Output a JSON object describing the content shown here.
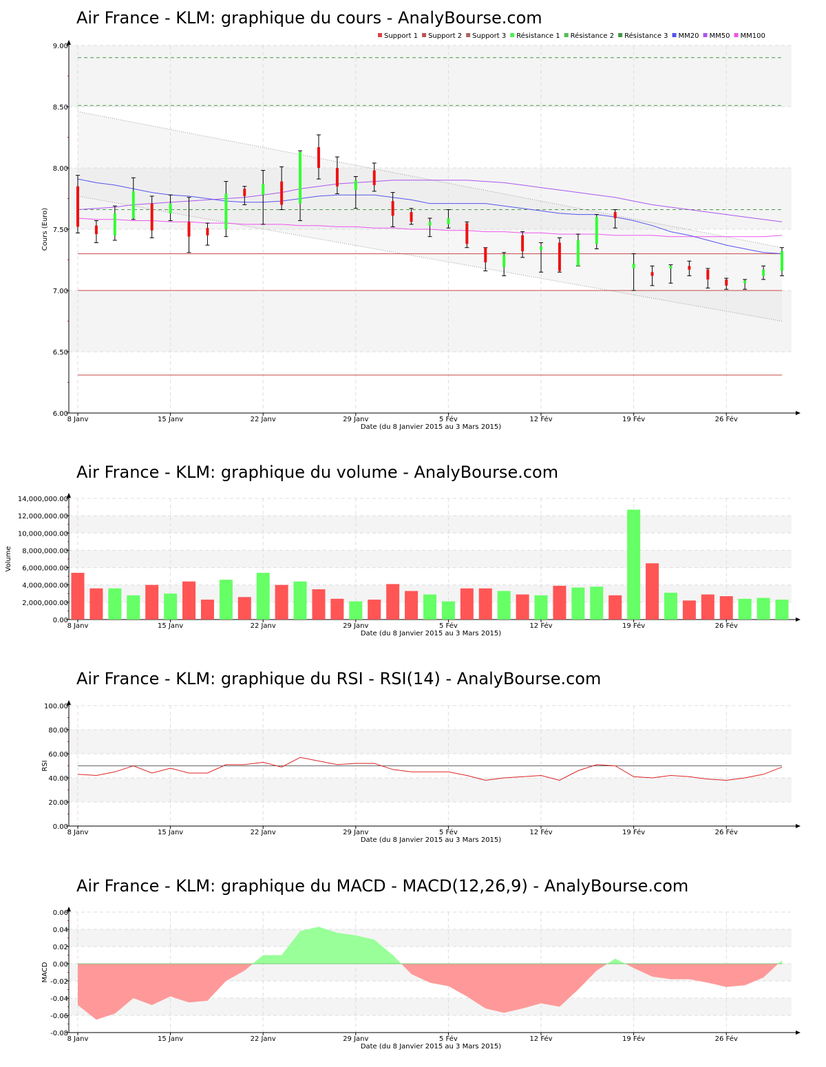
{
  "colors": {
    "up": "#33ff33",
    "down": "#ee1111",
    "vol_up": "#66ff66",
    "vol_down": "#ff5555",
    "macd_pos": "#99ff99",
    "macd_neg": "#ff9999",
    "support": "#cc4444",
    "resistance": "#449944",
    "mm20": "#5555ee",
    "mm50": "#aa55ee",
    "mm100": "#ee55ee",
    "rsi": "#dd2222"
  },
  "chart_data": [
    {
      "id": "price",
      "type": "candlestick",
      "title": "Air France - KLM: graphique du cours - AnalyBourse.com",
      "xlabel": "Date (du 8 Janvier 2015 au 3 Mars 2015)",
      "ylabel": "Cours (Euro)",
      "ylim": [
        6.0,
        9.0
      ],
      "yticks": [
        "6.00",
        "6.50",
        "7.00",
        "7.50",
        "8.00",
        "8.50",
        "9.00"
      ],
      "xticks": [
        {
          "label": "8 Janv",
          "i": 0
        },
        {
          "label": "15 Janv",
          "i": 5
        },
        {
          "label": "22 Janv",
          "i": 10
        },
        {
          "label": "29 Janv",
          "i": 15
        },
        {
          "label": "5 Fév",
          "i": 20
        },
        {
          "label": "12 Fév",
          "i": 25
        },
        {
          "label": "19 Fév",
          "i": 30
        },
        {
          "label": "26 Fév",
          "i": 35
        }
      ],
      "legend": [
        {
          "name": "Support 1",
          "color": "#dd4444"
        },
        {
          "name": "Support 2",
          "color": "#bb5555"
        },
        {
          "name": "Support 3",
          "color": "#aa6666"
        },
        {
          "name": "Résistance 1",
          "color": "#55ee55"
        },
        {
          "name": "Résistance 2",
          "color": "#55bb55"
        },
        {
          "name": "Résistance 3",
          "color": "#449944"
        },
        {
          "name": "MM20",
          "color": "#5555ee"
        },
        {
          "name": "MM50",
          "color": "#aa55ee"
        },
        {
          "name": "MM100",
          "color": "#ee55ee"
        }
      ],
      "supports": [
        7.3,
        7.0,
        6.31
      ],
      "resistances": [
        7.66,
        8.51,
        8.9
      ],
      "trend_channel": {
        "upper": [
          8.46,
          7.35
        ],
        "lower": [
          7.77,
          6.75
        ]
      },
      "candles": [
        {
          "o": 7.85,
          "h": 7.94,
          "l": 7.47,
          "c": 7.52
        },
        {
          "o": 7.53,
          "h": 7.57,
          "l": 7.39,
          "c": 7.46
        },
        {
          "o": 7.45,
          "h": 7.69,
          "l": 7.41,
          "c": 7.63
        },
        {
          "o": 7.59,
          "h": 7.92,
          "l": 7.58,
          "c": 7.81
        },
        {
          "o": 7.71,
          "h": 7.77,
          "l": 7.43,
          "c": 7.49
        },
        {
          "o": 7.63,
          "h": 7.78,
          "l": 7.57,
          "c": 7.71
        },
        {
          "o": 7.56,
          "h": 7.76,
          "l": 7.31,
          "c": 7.44
        },
        {
          "o": 7.51,
          "h": 7.55,
          "l": 7.37,
          "c": 7.45
        },
        {
          "o": 7.5,
          "h": 7.89,
          "l": 7.44,
          "c": 7.79
        },
        {
          "o": 7.83,
          "h": 7.85,
          "l": 7.7,
          "c": 7.77
        },
        {
          "o": 7.78,
          "h": 7.98,
          "l": 7.54,
          "c": 7.87
        },
        {
          "o": 7.89,
          "h": 8.01,
          "l": 7.66,
          "c": 7.7
        },
        {
          "o": 7.71,
          "h": 8.14,
          "l": 7.57,
          "c": 8.13
        },
        {
          "o": 8.17,
          "h": 8.27,
          "l": 7.91,
          "c": 8.0
        },
        {
          "o": 8.0,
          "h": 8.09,
          "l": 7.79,
          "c": 7.85
        },
        {
          "o": 7.82,
          "h": 7.93,
          "l": 7.67,
          "c": 7.9
        },
        {
          "o": 7.98,
          "h": 8.04,
          "l": 7.81,
          "c": 7.86
        },
        {
          "o": 7.73,
          "h": 7.8,
          "l": 7.52,
          "c": 7.61
        },
        {
          "o": 7.64,
          "h": 7.67,
          "l": 7.54,
          "c": 7.56
        },
        {
          "o": 7.53,
          "h": 7.59,
          "l": 7.44,
          "c": 7.56
        },
        {
          "o": 7.54,
          "h": 7.66,
          "l": 7.51,
          "c": 7.59
        },
        {
          "o": 7.55,
          "h": 7.56,
          "l": 7.35,
          "c": 7.38
        },
        {
          "o": 7.35,
          "h": 7.35,
          "l": 7.16,
          "c": 7.23
        },
        {
          "o": 7.19,
          "h": 7.31,
          "l": 7.12,
          "c": 7.29
        },
        {
          "o": 7.45,
          "h": 7.48,
          "l": 7.27,
          "c": 7.32
        },
        {
          "o": 7.33,
          "h": 7.39,
          "l": 7.15,
          "c": 7.36
        },
        {
          "o": 7.39,
          "h": 7.43,
          "l": 7.15,
          "c": 7.16
        },
        {
          "o": 7.2,
          "h": 7.46,
          "l": 7.2,
          "c": 7.41
        },
        {
          "o": 7.38,
          "h": 7.62,
          "l": 7.34,
          "c": 7.6
        },
        {
          "o": 7.64,
          "h": 7.66,
          "l": 7.51,
          "c": 7.59
        },
        {
          "o": 7.18,
          "h": 7.3,
          "l": 7.0,
          "c": 7.22
        },
        {
          "o": 7.15,
          "h": 7.2,
          "l": 7.04,
          "c": 7.12
        },
        {
          "o": 7.18,
          "h": 7.21,
          "l": 7.06,
          "c": 7.2
        },
        {
          "o": 7.2,
          "h": 7.24,
          "l": 7.12,
          "c": 7.17
        },
        {
          "o": 7.17,
          "h": 7.18,
          "l": 7.02,
          "c": 7.09
        },
        {
          "o": 7.09,
          "h": 7.1,
          "l": 7.01,
          "c": 7.04
        },
        {
          "o": 7.06,
          "h": 7.09,
          "l": 7.01,
          "c": 7.08
        },
        {
          "o": 7.12,
          "h": 7.2,
          "l": 7.09,
          "c": 7.17
        },
        {
          "o": 7.16,
          "h": 7.35,
          "l": 7.12,
          "c": 7.32
        }
      ],
      "mm20": [
        7.91,
        7.88,
        7.86,
        7.83,
        7.8,
        7.78,
        7.77,
        7.75,
        7.73,
        7.72,
        7.72,
        7.73,
        7.75,
        7.77,
        7.78,
        7.78,
        7.78,
        7.76,
        7.74,
        7.71,
        7.71,
        7.71,
        7.71,
        7.69,
        7.67,
        7.65,
        7.63,
        7.62,
        7.62,
        7.6,
        7.57,
        7.53,
        7.48,
        7.45,
        7.41,
        7.37,
        7.34,
        7.31,
        7.3
      ],
      "mm50": [
        7.66,
        7.67,
        7.68,
        7.7,
        7.71,
        7.72,
        7.73,
        7.74,
        7.75,
        7.76,
        7.78,
        7.8,
        7.83,
        7.85,
        7.87,
        7.88,
        7.89,
        7.9,
        7.9,
        7.9,
        7.9,
        7.9,
        7.89,
        7.88,
        7.86,
        7.84,
        7.82,
        7.8,
        7.78,
        7.76,
        7.73,
        7.7,
        7.68,
        7.66,
        7.64,
        7.62,
        7.6,
        7.58,
        7.56
      ],
      "mm100": [
        7.59,
        7.58,
        7.58,
        7.57,
        7.57,
        7.56,
        7.56,
        7.55,
        7.55,
        7.54,
        7.54,
        7.54,
        7.53,
        7.53,
        7.52,
        7.52,
        7.51,
        7.51,
        7.5,
        7.5,
        7.49,
        7.49,
        7.48,
        7.48,
        7.47,
        7.47,
        7.46,
        7.46,
        7.46,
        7.45,
        7.45,
        7.45,
        7.44,
        7.44,
        7.44,
        7.44,
        7.44,
        7.44,
        7.45
      ]
    },
    {
      "id": "volume",
      "type": "bar",
      "title": "Air France - KLM: graphique du volume - AnalyBourse.com",
      "xlabel": "Date (du 8 Janvier 2015 au 3 Mars 2015)",
      "ylabel": "Volume",
      "ylim": [
        0,
        14000000
      ],
      "yticks": [
        "0.00",
        "2,000,000.00",
        "4,000,000.00",
        "6,000,000.00",
        "8,000,000.00",
        "10,000,000.00",
        "12,000,000.00",
        "14,000,000.00"
      ],
      "xticks": [
        {
          "label": "8 Janv",
          "i": 0
        },
        {
          "label": "15 Janv",
          "i": 5
        },
        {
          "label": "22 Janv",
          "i": 10
        },
        {
          "label": "29 Janv",
          "i": 15
        },
        {
          "label": "5 Fév",
          "i": 20
        },
        {
          "label": "12 Fév",
          "i": 25
        },
        {
          "label": "19 Fév",
          "i": 30
        },
        {
          "label": "26 Fév",
          "i": 35
        }
      ],
      "values": [
        5400000,
        3600000,
        3600000,
        2800000,
        4000000,
        3000000,
        4400000,
        2300000,
        4600000,
        2600000,
        5400000,
        4000000,
        4400000,
        3500000,
        2400000,
        2100000,
        2300000,
        4100000,
        3300000,
        2900000,
        2100000,
        3600000,
        3600000,
        3300000,
        2900000,
        2800000,
        3900000,
        3700000,
        3800000,
        2800000,
        12700000,
        6500000,
        3100000,
        2200000,
        2900000,
        2700000,
        2400000,
        2500000,
        2300000
      ],
      "up": [
        false,
        false,
        true,
        true,
        false,
        true,
        false,
        false,
        true,
        false,
        true,
        false,
        true,
        false,
        false,
        true,
        false,
        false,
        false,
        true,
        true,
        false,
        false,
        true,
        false,
        true,
        false,
        true,
        true,
        false,
        true,
        false,
        true,
        false,
        false,
        false,
        true,
        true,
        true
      ]
    },
    {
      "id": "rsi",
      "type": "line",
      "title": "Air France - KLM: graphique du RSI - RSI(14) - AnalyBourse.com",
      "xlabel": "Date (du 8 Janvier 2015 au 3 Mars 2015)",
      "ylabel": "RSI",
      "ylim": [
        0,
        100
      ],
      "yticks": [
        "0.00",
        "20.00",
        "40.00",
        "60.00",
        "80.00",
        "100.00"
      ],
      "xticks": [
        {
          "label": "8 Janv",
          "i": 0
        },
        {
          "label": "15 Janv",
          "i": 5
        },
        {
          "label": "22 Janv",
          "i": 10
        },
        {
          "label": "29 Janv",
          "i": 15
        },
        {
          "label": "5 Fév",
          "i": 20
        },
        {
          "label": "12 Fév",
          "i": 25
        },
        {
          "label": "19 Fév",
          "i": 30
        },
        {
          "label": "26 Fév",
          "i": 35
        }
      ],
      "reference": 50,
      "values": [
        43,
        42,
        45,
        50,
        44,
        48,
        44,
        44,
        51,
        51,
        53,
        49,
        57,
        54,
        51,
        52,
        52,
        47,
        45,
        45,
        45,
        42,
        38,
        40,
        41,
        42,
        38,
        46,
        51,
        50,
        41,
        40,
        42,
        41,
        39,
        38,
        40,
        43,
        49
      ]
    },
    {
      "id": "macd",
      "type": "area",
      "title": "Air France - KLM: graphique du MACD - MACD(12,26,9) - AnalyBourse.com",
      "xlabel": "Date (du 8 Janvier 2015 au 3 Mars 2015)",
      "ylabel": "MACD",
      "ylim": [
        -0.08,
        0.06
      ],
      "yticks": [
        "-0.08",
        "-0.06",
        "-0.04",
        "-0.02",
        "0.00",
        "0.02",
        "0.04",
        "0.06"
      ],
      "xticks": [
        {
          "label": "8 Janv",
          "i": 0
        },
        {
          "label": "15 Janv",
          "i": 5
        },
        {
          "label": "22 Janv",
          "i": 10
        },
        {
          "label": "29 Janv",
          "i": 15
        },
        {
          "label": "5 Fév",
          "i": 20
        },
        {
          "label": "12 Fév",
          "i": 25
        },
        {
          "label": "19 Fév",
          "i": 30
        },
        {
          "label": "26 Fév",
          "i": 35
        }
      ],
      "values": [
        -0.048,
        -0.065,
        -0.058,
        -0.04,
        -0.048,
        -0.038,
        -0.045,
        -0.043,
        -0.02,
        -0.008,
        0.01,
        0.01,
        0.038,
        0.043,
        0.036,
        0.033,
        0.028,
        0.01,
        -0.012,
        -0.022,
        -0.026,
        -0.038,
        -0.052,
        -0.057,
        -0.052,
        -0.046,
        -0.05,
        -0.03,
        -0.008,
        0.006,
        -0.005,
        -0.015,
        -0.018,
        -0.018,
        -0.022,
        -0.027,
        -0.025,
        -0.016,
        0.004
      ]
    }
  ]
}
